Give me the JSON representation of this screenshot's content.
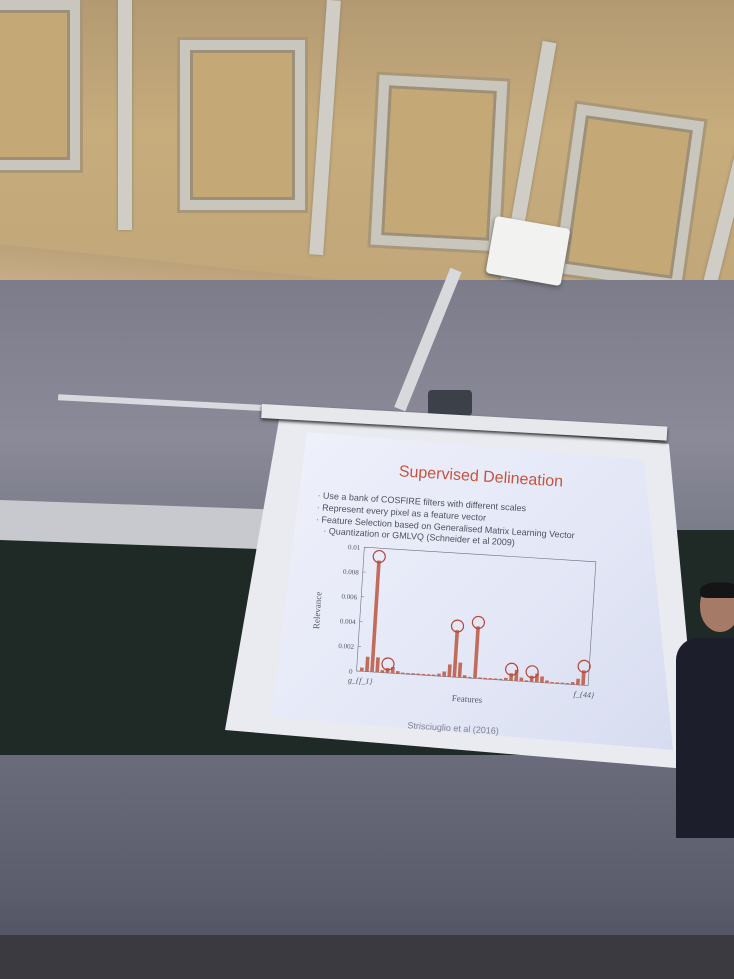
{
  "slide": {
    "title": "Supervised Delineation",
    "bullets": [
      "Use a bank of COSFIRE filters with different scales",
      "Represent every pixel as a feature vector",
      "Feature Selection based on Generalised Matrix Learning Vector",
      "Quantization or GMLVQ (Schneider et al 2009)"
    ],
    "citation": "Strisciuglio et al (2016)"
  },
  "chart_data": {
    "type": "bar",
    "ylabel": "Relevance",
    "xlabel": "Features",
    "yticks": [
      "0",
      "0.002",
      "0.004",
      "0.006",
      "0.008",
      "0.01"
    ],
    "ylim": [
      0,
      0.01
    ],
    "x_start_label": "g_{f_1}",
    "x_end_label": "f_{44}",
    "values": [
      0.0003,
      0.0012,
      0.009,
      0.0012,
      0.0002,
      0.0004,
      0.0005,
      0.0002,
      0.0001,
      0.0001,
      0.0001,
      0.0001,
      0.0001,
      0.0001,
      0.0001,
      0.0002,
      0.0004,
      0.001,
      0.0038,
      0.0012,
      0.0002,
      0.0001,
      0.0042,
      0.0001,
      0.0001,
      0.0001,
      0.0001,
      0.0001,
      0.0002,
      0.0006,
      0.0009,
      0.0003,
      0.0001,
      0.0005,
      0.0007,
      0.0005,
      0.0002,
      0.0001,
      0.0001,
      0.0001,
      0.0001,
      0.0002,
      0.0005,
      0.0012
    ],
    "circled_indices": [
      2,
      5,
      18,
      22,
      29,
      33,
      43
    ],
    "bar_color": "#c26b5a",
    "highlight_color": "#d08474",
    "circle_color": "#b3473a"
  }
}
